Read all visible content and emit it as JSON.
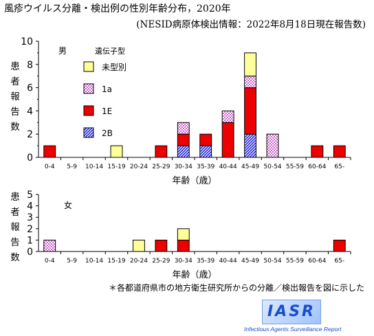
{
  "title": "風疹ウイルス分離・検出例の性別年齢分布，2020年",
  "subtitle": "(NESID病原体検出情報：2022年8月18日現在報告数)",
  "ylabel": "患者報告数",
  "footnote": "＊各都道府県市の地方衛生研究所からの分離／検出報告を図に示した",
  "logo": {
    "text": "IASR",
    "tagline": "Infectious Agents Surveillance Report"
  },
  "chart_data": [
    {
      "type": "bar",
      "stacked": true,
      "panel": "男",
      "categories": [
        "0-4",
        "5-9",
        "10-14",
        "15-19",
        "20-24",
        "25-29",
        "30-34",
        "35-39",
        "40-44",
        "45-49",
        "50-54",
        "55-59",
        "60-64",
        "65-"
      ],
      "xlabel": "年齢（歳）",
      "ylabel": "患者報告数",
      "ylim": [
        0,
        10
      ],
      "yticks": [
        0,
        2,
        4,
        6,
        8,
        10
      ],
      "legend_title": "遺伝子型",
      "series": [
        {
          "name": "2B",
          "color": "#2222dd",
          "pattern": "hatch",
          "values": [
            0,
            0,
            0,
            0,
            0,
            0,
            1,
            1,
            0,
            2,
            0,
            0,
            0,
            0
          ]
        },
        {
          "name": "1E",
          "color": "#ee0000",
          "pattern": "solid",
          "values": [
            1,
            0,
            0,
            0,
            0,
            1,
            1,
            1,
            3,
            4,
            0,
            0,
            1,
            1
          ]
        },
        {
          "name": "1a",
          "color": "#cc66cc",
          "pattern": "check",
          "values": [
            0,
            0,
            0,
            0,
            0,
            0,
            1,
            0,
            1,
            1,
            2,
            0,
            0,
            0
          ]
        },
        {
          "name": "未型別",
          "color": "#ffff99",
          "pattern": "solid",
          "values": [
            0,
            0,
            0,
            1,
            0,
            0,
            0,
            0,
            0,
            2,
            0,
            0,
            0,
            0
          ]
        }
      ]
    },
    {
      "type": "bar",
      "stacked": true,
      "panel": "女",
      "categories": [
        "0-4",
        "5-9",
        "10-14",
        "15-19",
        "20-24",
        "25-29",
        "30-34",
        "35-39",
        "40-44",
        "45-49",
        "50-54",
        "55-59",
        "60-64",
        "65-"
      ],
      "xlabel": "年齢（歳）",
      "ylabel": "患者報告数",
      "ylim": [
        0,
        5
      ],
      "yticks": [
        0,
        1,
        2,
        3,
        4,
        5
      ],
      "series": [
        {
          "name": "2B",
          "color": "#2222dd",
          "pattern": "hatch",
          "values": [
            0,
            0,
            0,
            0,
            0,
            0,
            0,
            0,
            0,
            0,
            0,
            0,
            0,
            0
          ]
        },
        {
          "name": "1E",
          "color": "#ee0000",
          "pattern": "solid",
          "values": [
            0,
            0,
            0,
            0,
            0,
            1,
            1,
            0,
            0,
            0,
            0,
            0,
            0,
            1
          ]
        },
        {
          "name": "1a",
          "color": "#cc66cc",
          "pattern": "check",
          "values": [
            1,
            0,
            0,
            0,
            0,
            0,
            0,
            0,
            0,
            0,
            0,
            0,
            0,
            0
          ]
        },
        {
          "name": "未型別",
          "color": "#ffff99",
          "pattern": "solid",
          "values": [
            0,
            0,
            0,
            0,
            1,
            0,
            1,
            0,
            0,
            0,
            0,
            0,
            0,
            0
          ]
        }
      ]
    }
  ]
}
